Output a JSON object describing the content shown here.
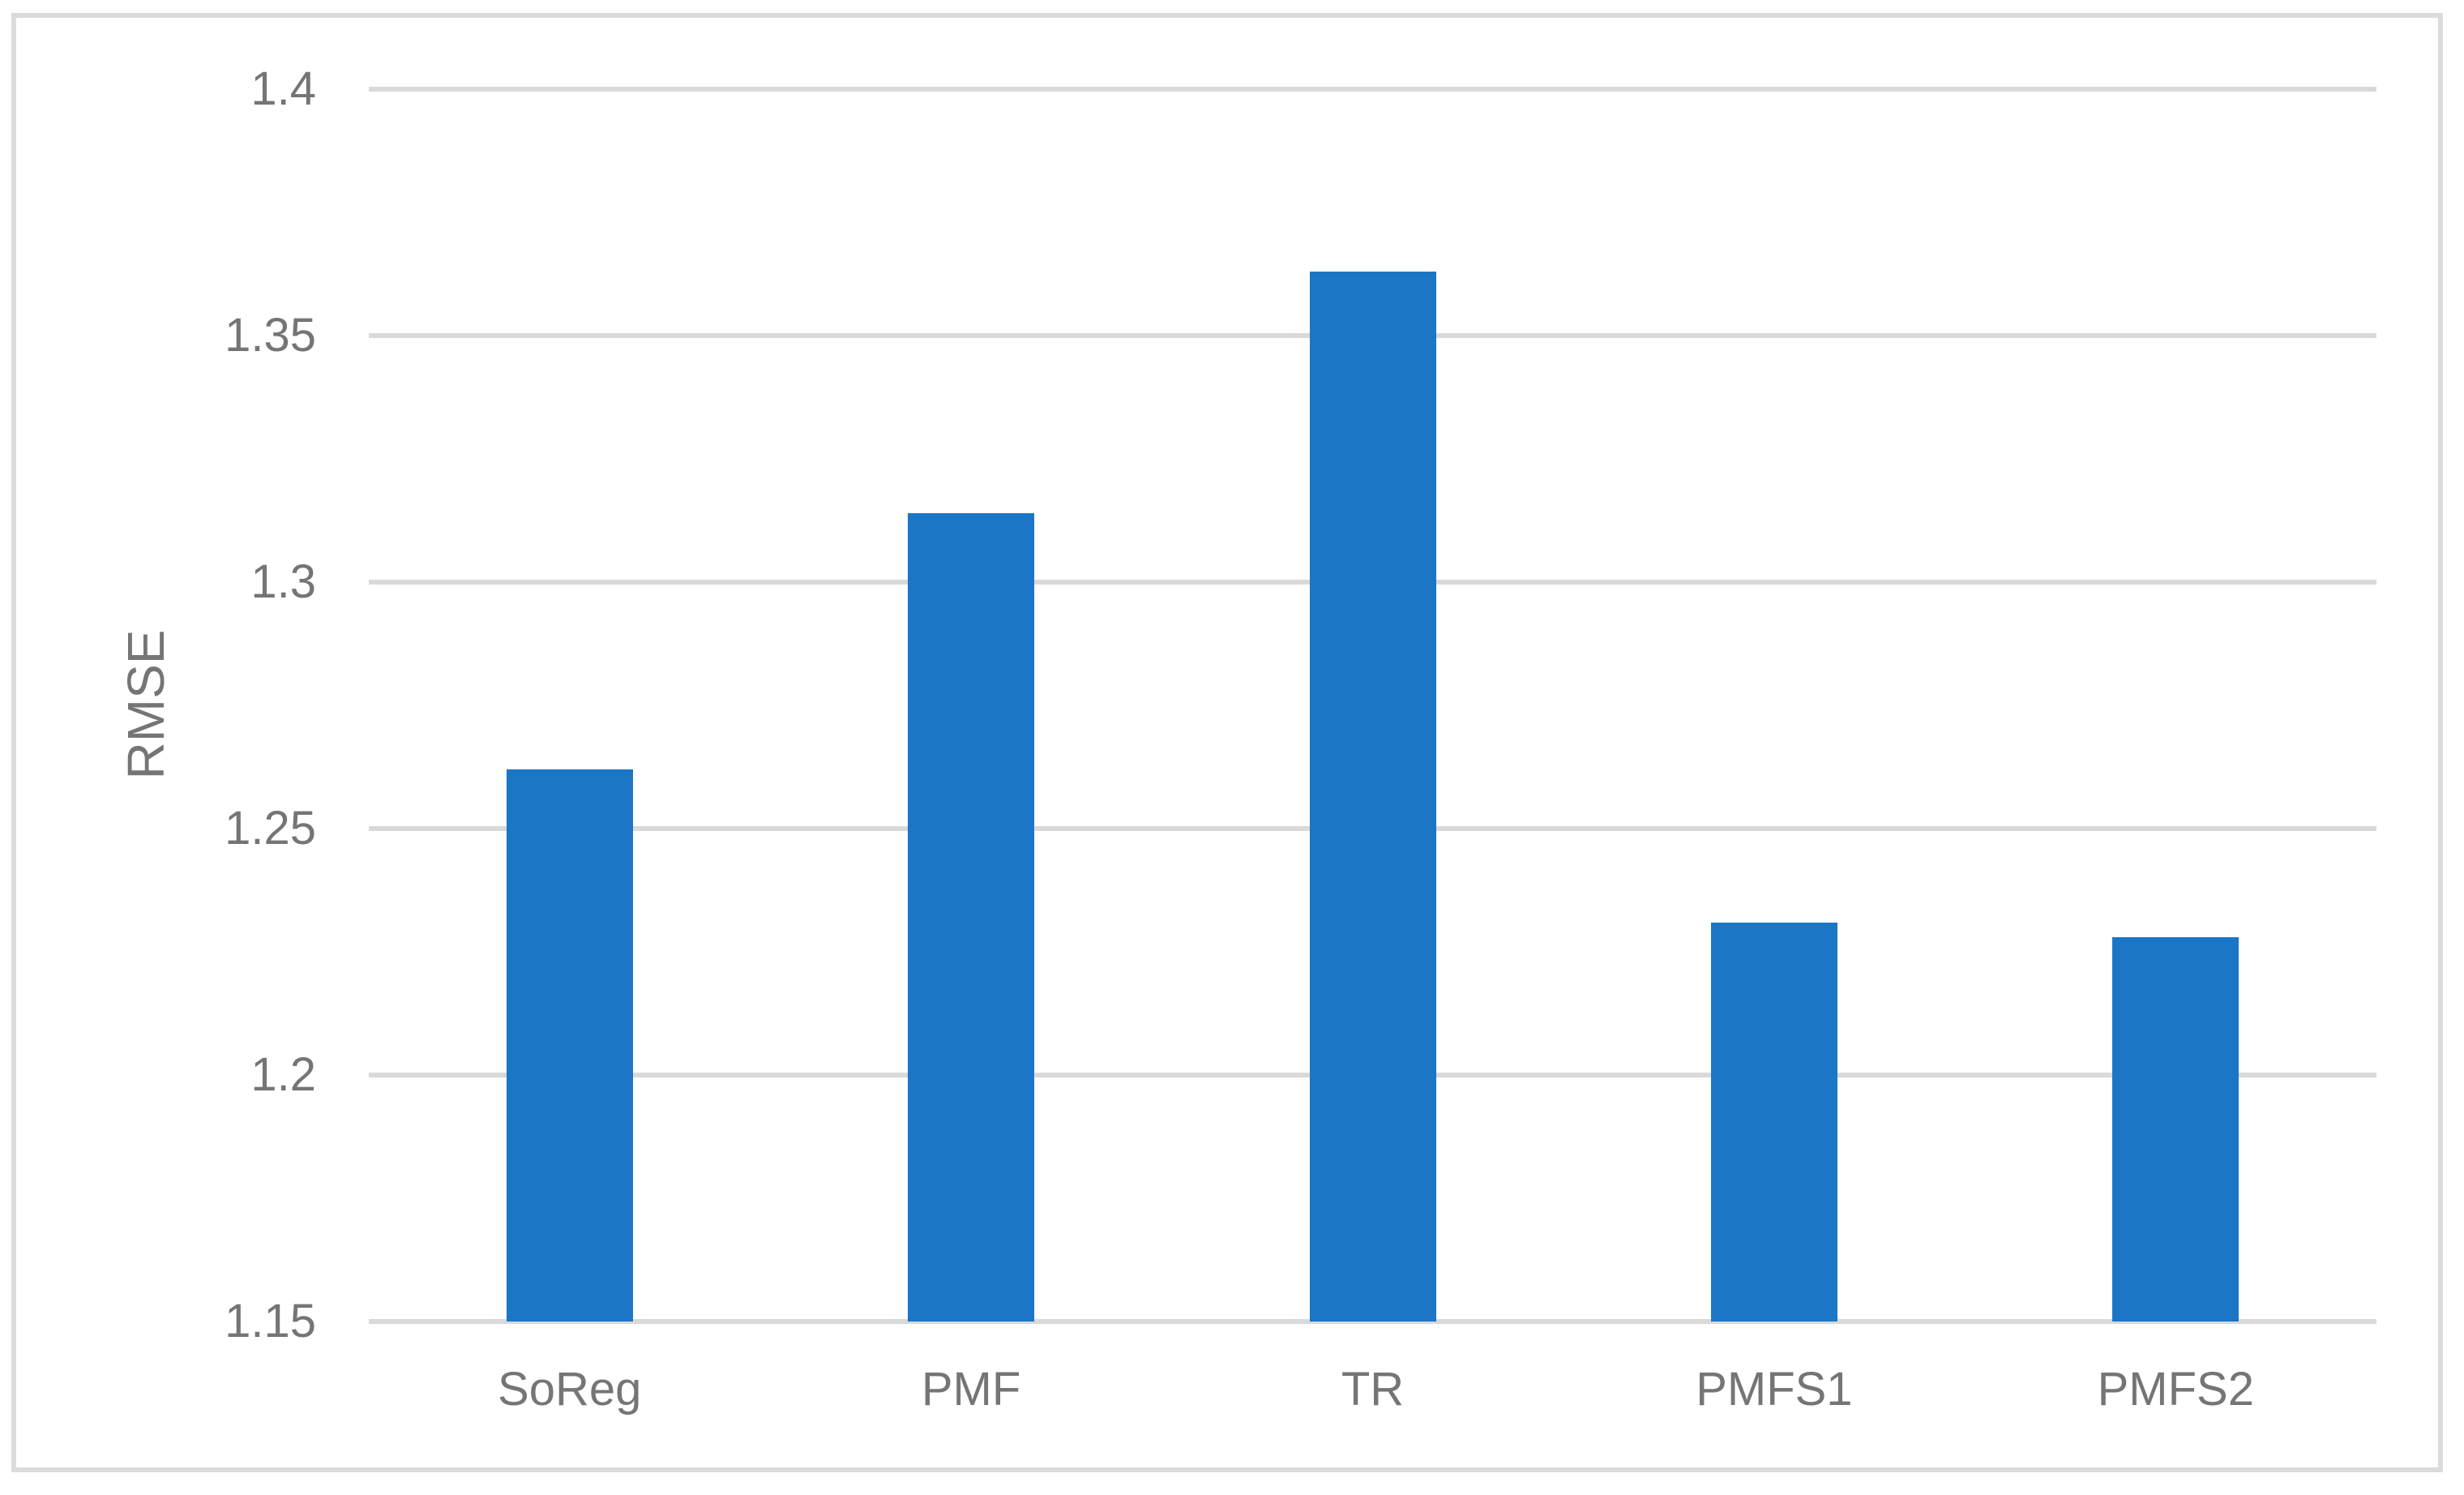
{
  "figure": {
    "background_color": "#ffffff",
    "border_color": "#dbdbdb"
  },
  "chart_data": {
    "type": "bar",
    "title": "",
    "xlabel": "",
    "ylabel": "RMSE",
    "categories": [
      "SoReg",
      "PMF",
      "TR",
      "PMFS1",
      "PMFS2"
    ],
    "values": [
      1.262,
      1.314,
      1.363,
      1.231,
      1.228
    ],
    "ylim": [
      1.15,
      1.4
    ],
    "ytick_step": 0.05,
    "yticks": [
      1.15,
      1.2,
      1.25,
      1.3,
      1.35,
      1.4
    ],
    "ytick_labels": [
      "1.15",
      "1.2",
      "1.25",
      "1.3",
      "1.35",
      "1.4"
    ],
    "grid": true,
    "legend": false,
    "bar_color": "#1b76c6",
    "gridline_color": "#d9d9d9",
    "axis_label_color": "#757575"
  }
}
